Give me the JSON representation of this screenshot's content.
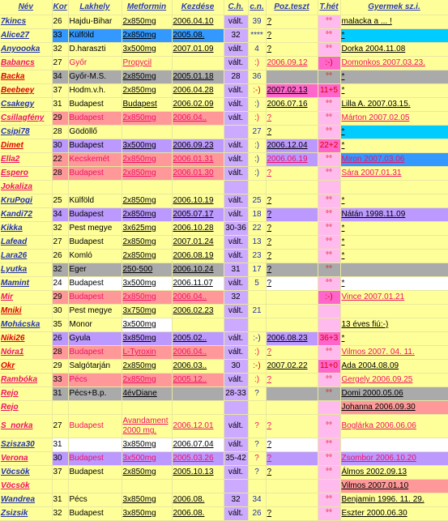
{
  "headers": [
    "Név",
    "Kor",
    "Lakhely",
    "Metformin",
    "Kezdése",
    "C.h.",
    "c.n.",
    "Poz.teszt",
    "T.hét",
    "Gyermek sz.i."
  ],
  "rows": [
    {
      "nev": "7kincs",
      "nc": "#2233aa",
      "kor": "26",
      "kbg": "#ffff99",
      "hely": "Hajdu-Bihar",
      "hc": "#000",
      "hbg": "#ffff99",
      "met": "2x850mg",
      "mbg": "#ffff99",
      "kez": "2006.04.10",
      "kbg2": "#ffff99",
      "ch": "vált.",
      "cn": "39",
      "cnc": "#2233aa",
      "poz": "?",
      "pbg": "#ffff99",
      "thet": "°°",
      "tbg": "#ffbbee",
      "gy": "malacka a ... !",
      "gbg": "#ffff99"
    },
    {
      "nev": "Alice27",
      "nc": "#2233aa",
      "kor": "33",
      "kbg": "#3399ff",
      "hely": "Külföld",
      "hc": "#000",
      "hbg": "#3399ff",
      "met": "2x850mg",
      "mbg": "#3399ff",
      "kez": "2005.08.",
      "kbg2": "#3399ff",
      "ch": "32",
      "cn": "****",
      "cnc": "#2233aa",
      "poz": "?",
      "pbg": "#ffff99",
      "thet": "°°",
      "tbg": "#ffbbee",
      "gy": "*",
      "gbg": "#00ccff"
    },
    {
      "nev": "Anyoooka",
      "nc": "#2233aa",
      "kor": "32",
      "kbg": "#ffff99",
      "hely": "D.haraszti",
      "hc": "#000",
      "hbg": "#ffff99",
      "met": "3x500mg",
      "mbg": "#ffff99",
      "kez": "2007.01.09",
      "kbg2": "#ffff99",
      "ch": "vált.",
      "cn": "4",
      "cnc": "#2233aa",
      "poz": "?",
      "pbg": "#ffff99",
      "thet": "°°",
      "tbg": "#ffbbee",
      "gy": "Dorka    2004.11.08",
      "gbg": "#ffff99"
    },
    {
      "nev": "Babancs",
      "nc": "#ee1166",
      "kor": "27",
      "kbg": "#ffff99",
      "hely": "Győr",
      "hc": "#ee1166",
      "hbg": "#ffff99",
      "met": "Propycil",
      "mbg": "#ffff99",
      "kez": "",
      "kbg2": "#ffff99",
      "ch": "vált.",
      "cn": ":)",
      "cnc": "#ee1166",
      "poz": "2006.09.12",
      "pbg": "#ffff99",
      "thet": ":-)",
      "tbg": "#ff66cc",
      "gy": "Domonkos 2007.03.23.",
      "gbg": "#ffff99"
    },
    {
      "nev": "Backa",
      "nc": "#dd0000",
      "kor": "34",
      "kbg": "#aaaaaa",
      "hely": "Győr-M.S.",
      "hc": "#000",
      "hbg": "#aaaaaa",
      "met": "2x850mg",
      "mbg": "#aaaaaa",
      "kez": "2005.01.18",
      "kbg2": "#aaaaaa",
      "ch": "28",
      "cn": "36",
      "cnc": "#2233aa",
      "poz": "",
      "pbg": "#aaaaaa",
      "thet": "°°",
      "tbg": "#aaaaaa",
      "gy": "*",
      "gbg": "#aaaaaa"
    },
    {
      "nev": "Beebeey",
      "nc": "#dd0000",
      "kor": "37",
      "kbg": "#ffff99",
      "hely": "Hodm.v.h.",
      "hc": "#000",
      "hbg": "#ffff99",
      "met": "2x850mg",
      "mbg": "#ffff99",
      "kez": "2006.04.28",
      "kbg2": "#ffff99",
      "ch": "vált.",
      "cn": ":-)",
      "cnc": "#dd0000",
      "poz": "2007.02.13",
      "pbg": "#ff66cc",
      "thet": "11+5",
      "tbg": "#ff66cc",
      "gy": "*",
      "gbg": "#ffff99"
    },
    {
      "nev": "Csakegy",
      "nc": "#2233aa",
      "kor": "31",
      "kbg": "#ffff99",
      "hely": "Budapest",
      "hc": "#000",
      "hbg": "#ffff99",
      "met": "Budapest",
      "mbg": "#ffff99",
      "kez": "2006.02.09",
      "kbg2": "#ffff99",
      "ch": "vált.",
      "cn": ":)",
      "cnc": "#2233aa",
      "poz": "2006.07.16",
      "pbg": "#ffff99",
      "thet": "°°",
      "tbg": "#ffbbee",
      "gy": "Lilla A.   2007.03.15.",
      "gbg": "#ffff99"
    },
    {
      "nev": "Csillagfény",
      "nc": "#ee1166",
      "kor": "29",
      "kbg": "#ff9999",
      "hely": "Budapest",
      "hc": "#ee1166",
      "hbg": "#ff9999",
      "met": "2x850mg",
      "mbg": "#ff9999",
      "kez": "2006.04..",
      "kbg2": "#ff9999",
      "ch": "vált.",
      "cn": ":)",
      "cnc": "#ee1166",
      "poz": "?",
      "pbg": "#ffff99",
      "thet": "°°",
      "tbg": "#ffbbee",
      "gy": "Márton    2007.02.05",
      "gbg": "#ffff99"
    },
    {
      "nev": "Csipi78",
      "nc": "#2233aa",
      "kor": "28",
      "kbg": "#ffff99",
      "hely": "Gödöllő",
      "hc": "#000",
      "hbg": "#ffff99",
      "met": "",
      "mbg": "#ffff99",
      "kez": "",
      "kbg2": "#ffff99",
      "ch": "",
      "cn": "27",
      "cnc": "#2233aa",
      "poz": "?",
      "pbg": "#ffff99",
      "thet": "°°",
      "tbg": "#ffbbee",
      "gy": "*",
      "gbg": "#00ccff"
    },
    {
      "nev": "Dimet",
      "nc": "#dd0000",
      "kor": "30",
      "kbg": "#bb99ff",
      "hely": "Budapest",
      "hc": "#000",
      "hbg": "#bb99ff",
      "met": "3x500mg",
      "mbg": "#bb99ff",
      "kez": "2006.09.23",
      "kbg2": "#bb99ff",
      "ch": "vált.",
      "cn": ":)",
      "cnc": "#2233aa",
      "poz": "2006.12.04",
      "pbg": "#bb99ff",
      "thet": "22+2",
      "tbg": "#ff66cc",
      "gy": "*",
      "gbg": "#ffff99"
    },
    {
      "nev": "Ella2",
      "nc": "#ee1166",
      "kor": "22",
      "kbg": "#ff9999",
      "hely": "Kecskemét",
      "hc": "#ee1166",
      "hbg": "#ff9999",
      "met": "2x850mg",
      "mbg": "#ff9999",
      "kez": "2006.01.31",
      "kbg2": "#ff9999",
      "ch": "vált.",
      "cn": ":)",
      "cnc": "#2233aa",
      "poz": "2006.06.19",
      "pbg": "#bb99ff",
      "thet": "°°",
      "tbg": "#ffbbee",
      "gy": "Miron      2007.03.06",
      "gbg": "#3399ff"
    },
    {
      "nev": "Espero",
      "nc": "#ee1166",
      "kor": "28",
      "kbg": "#ff9999",
      "hely": "Budapest",
      "hc": "#ee1166",
      "hbg": "#ff9999",
      "met": "2x850mg",
      "mbg": "#ff9999",
      "kez": "2006.01.30",
      "kbg2": "#ff9999",
      "ch": "vált.",
      "cn": ":)",
      "cnc": "#2233aa",
      "poz": "?",
      "pbg": "#ffff99",
      "thet": "°°",
      "tbg": "#ffbbee",
      "gy": "Sára      2007.01.31",
      "gbg": "#ffff99"
    },
    {
      "nev": "Jokaliza",
      "nc": "#ee1166",
      "kor": "",
      "kbg": "#ffff99",
      "hely": "",
      "hc": "#000",
      "hbg": "#ffff99",
      "met": "",
      "mbg": "#ffff99",
      "kez": "",
      "kbg2": "#ffff99",
      "ch": "",
      "cn": "",
      "cnc": "#2233aa",
      "poz": "",
      "pbg": "#ffff99",
      "thet": "",
      "tbg": "#ffbbee",
      "gy": "",
      "gbg": "#ffff99"
    },
    {
      "nev": "KruPogi",
      "nc": "#2233aa",
      "kor": "25",
      "kbg": "#ffff99",
      "hely": "Külföld",
      "hc": "#000",
      "hbg": "#ffff99",
      "met": "2x850mg",
      "mbg": "#ffff99",
      "kez": "2006.10.19",
      "kbg2": "#ffff99",
      "ch": "vált.",
      "cn": "25",
      "cnc": "#2233aa",
      "poz": "?",
      "pbg": "#ffff99",
      "thet": "°°",
      "tbg": "#ffbbee",
      "gy": "*",
      "gbg": "#ffff99"
    },
    {
      "nev": "Kandi72",
      "nc": "#2233aa",
      "kor": "34",
      "kbg": "#bb99ff",
      "hely": "Budapest",
      "hc": "#000",
      "hbg": "#bb99ff",
      "met": "2x850mg",
      "mbg": "#bb99ff",
      "kez": "2005.07.17",
      "kbg2": "#bb99ff",
      "ch": "vált.",
      "cn": "18",
      "cnc": "#2233aa",
      "poz": "?",
      "pbg": "#bb99ff",
      "thet": "°°",
      "tbg": "#ffbbee",
      "gy": "Nátán      1998.11.09",
      "gbg": "#bb99ff"
    },
    {
      "nev": "Kikka",
      "nc": "#2233aa",
      "kor": "32",
      "kbg": "#ffff99",
      "hely": "Pest megye",
      "hc": "#000",
      "hbg": "#ffff99",
      "met": "3x625mg",
      "mbg": "#ffff99",
      "kez": "2006.10.28",
      "kbg2": "#ffff99",
      "ch": "30-36",
      "cn": "22",
      "cnc": "#2233aa",
      "poz": "?",
      "pbg": "#ffff99",
      "thet": "°°",
      "tbg": "#ffbbee",
      "gy": "*",
      "gbg": "#ffff99"
    },
    {
      "nev": "Lafead",
      "nc": "#2233aa",
      "kor": "27",
      "kbg": "#ffff99",
      "hely": "Budapest",
      "hc": "#000",
      "hbg": "#ffff99",
      "met": "2x850mg",
      "mbg": "#ffff99",
      "kez": "2007.01.24",
      "kbg2": "#ffff99",
      "ch": "vált.",
      "cn": "13",
      "cnc": "#2233aa",
      "poz": "?",
      "pbg": "#ffff99",
      "thet": "°°",
      "tbg": "#ffbbee",
      "gy": "*",
      "gbg": "#ffff99"
    },
    {
      "nev": "Lara26",
      "nc": "#2233aa",
      "kor": "26",
      "kbg": "#ffff99",
      "hely": "Komló",
      "hc": "#000",
      "hbg": "#ffff99",
      "met": "2x850mg",
      "mbg": "#ffff99",
      "kez": "2006.08.19",
      "kbg2": "#ffff99",
      "ch": "vált.",
      "cn": "23",
      "cnc": "#2233aa",
      "poz": "?",
      "pbg": "#ffff99",
      "thet": "°°",
      "tbg": "#ffbbee",
      "gy": "*",
      "gbg": "#ffff99"
    },
    {
      "nev": "Lyutka",
      "nc": "#2233aa",
      "kor": "32",
      "kbg": "#aaaaaa",
      "hely": "Eger",
      "hc": "#000",
      "hbg": "#aaaaaa",
      "met": "250-500",
      "mbg": "#aaaaaa",
      "kez": "2006.10.24",
      "kbg2": "#aaaaaa",
      "ch": "31",
      "cn": "17",
      "cnc": "#2233aa",
      "poz": "?",
      "pbg": "#aaaaaa",
      "thet": "°°",
      "tbg": "#aaaaaa",
      "gy": "",
      "gbg": "#aaaaaa"
    },
    {
      "nev": "Mamint",
      "nc": "#2233aa",
      "kor": "24",
      "kbg": "#ffffff",
      "hely": "Budapest",
      "hc": "#000",
      "hbg": "#ffffff",
      "met": "3x500mg",
      "mbg": "#ffffff",
      "kez": "2006.11.07",
      "kbg2": "#ffffff",
      "ch": "vált.",
      "cn": "5",
      "cnc": "#2233aa",
      "poz": "?",
      "pbg": "#ffffff",
      "thet": "°°",
      "tbg": "#ffbbee",
      "gy": "*",
      "gbg": "#ffffff"
    },
    {
      "nev": "Mir",
      "nc": "#ee1166",
      "kor": "29",
      "kbg": "#ff9999",
      "hely": "Budapest",
      "hc": "#ee1166",
      "hbg": "#ff9999",
      "met": "2x850mg",
      "mbg": "#ff9999",
      "kez": "2006.04..",
      "kbg2": "#ff9999",
      "ch": "32",
      "cn": "",
      "cnc": "#2233aa",
      "poz": "",
      "pbg": "#ffff99",
      "thet": ":-)",
      "tbg": "#ff66cc",
      "gy": "Vince      2007.01.21",
      "gbg": "#ffff99"
    },
    {
      "nev": "Mniki",
      "nc": "#dd0000",
      "kor": "30",
      "kbg": "#ffff99",
      "hely": "Pest megye",
      "hc": "#000",
      "hbg": "#ffff99",
      "met": "3x750mg",
      "mbg": "#ffff99",
      "kez": "2006.02.23",
      "kbg2": "#ffff99",
      "ch": "vált.",
      "cn": "21",
      "cnc": "#2233aa",
      "poz": "",
      "pbg": "#ffff99",
      "thet": "",
      "tbg": "#ffbbee",
      "gy": "",
      "gbg": "#ffff99"
    },
    {
      "nev": "Mohácska",
      "nc": "#2233aa",
      "kor": "35",
      "kbg": "#ffff99",
      "hely": "Monor",
      "hc": "#000",
      "hbg": "#ffff99",
      "met": "3x500mg",
      "mbg": "#ffffff",
      "kez": "",
      "kbg2": "#ffff99",
      "ch": "",
      "cn": "",
      "cnc": "#2233aa",
      "poz": "",
      "pbg": "#ffff99",
      "thet": "",
      "tbg": "#ffbbee",
      "gy": "13 éves fiú:-)",
      "gbg": "#ffff99"
    },
    {
      "nev": "Niki26",
      "nc": "#dd0000",
      "kor": "26",
      "kbg": "#bb99ff",
      "hely": "Gyula",
      "hc": "#000",
      "hbg": "#bb99ff",
      "met": "3x850mg",
      "mbg": "#bb99ff",
      "kez": "2005.02..",
      "kbg2": "#bb99ff",
      "ch": "vált.",
      "cn": ":-)",
      "cnc": "#2233aa",
      "poz": "2006.08.23",
      "pbg": "#bb99ff",
      "thet": "36+3",
      "tbg": "#ff66cc",
      "gy": "*",
      "gbg": "#ffff99"
    },
    {
      "nev": "Nóra1",
      "nc": "#ee1166",
      "kor": "28",
      "kbg": "#ff9999",
      "hely": "Budapest",
      "hc": "#ee1166",
      "hbg": "#ff9999",
      "met": "L-Tyroxin",
      "mbg": "#ff9999",
      "kez": "2006.04..",
      "kbg2": "#ff9999",
      "ch": "vált.",
      "cn": ":)",
      "cnc": "#ee1166",
      "poz": "?",
      "pbg": "#ffff99",
      "thet": "°°",
      "tbg": "#ffbbee",
      "gy": "Vilmos 2007. 04. 11.",
      "gbg": "#ffff99"
    },
    {
      "nev": "Okr",
      "nc": "#dd0000",
      "kor": "29",
      "kbg": "#ffff99",
      "hely": "Salgótarján",
      "hc": "#000",
      "hbg": "#ffff99",
      "met": "2x850mg",
      "mbg": "#ffff99",
      "kez": "2006.03..",
      "kbg2": "#ffff99",
      "ch": "30",
      "cn": ":-)",
      "cnc": "#dd0000",
      "poz": "2007.02.22",
      "pbg": "#ffff99",
      "thet": "11+0",
      "tbg": "#ff66cc",
      "gy": "Ada        2004.08.09",
      "gbg": "#ffff99"
    },
    {
      "nev": "Rambóka",
      "nc": "#ee1166",
      "kor": "33",
      "kbg": "#ff9999",
      "hely": "Pécs",
      "hc": "#ee1166",
      "hbg": "#ff9999",
      "met": "2x850mg",
      "mbg": "#ff9999",
      "kez": "2005.12..",
      "kbg2": "#ff9999",
      "ch": "vált.",
      "cn": ":)",
      "cnc": "#ee1166",
      "poz": "?",
      "pbg": "#ffff99",
      "thet": "°°",
      "tbg": "#ffbbee",
      "gy": "Gergely  2006.09.25",
      "gbg": "#ffff99"
    },
    {
      "nev": "Rejo",
      "nc": "#ee1166",
      "kor": "31",
      "kbg": "#aaaaaa",
      "hely": "Pécs+B.p.",
      "hc": "#000",
      "hbg": "#aaaaaa",
      "met": "4évDiane",
      "mbg": "#aaaaaa",
      "kez": "",
      "kbg2": "#aaaaaa",
      "ch": "28-33",
      "cn": "?",
      "cnc": "#2233aa",
      "poz": "",
      "pbg": "#aaaaaa",
      "thet": "°°",
      "tbg": "#aaaaaa",
      "gy": "Domi       2000.05.06",
      "gbg": "#aaaaaa"
    },
    {
      "nev": "Rejo",
      "nc": "#ee1166",
      "kor": "",
      "kbg": "#ffff99",
      "hely": "",
      "hc": "#000",
      "hbg": "#ffff99",
      "met": "",
      "mbg": "#ffff99",
      "kez": "",
      "kbg2": "#ffff99",
      "ch": "",
      "cn": "",
      "cnc": "#2233aa",
      "poz": "",
      "pbg": "#ffff99",
      "thet": "",
      "tbg": "#ffbbee",
      "gy": "Johanna  2006.09.30",
      "gbg": "#ff9999"
    },
    {
      "nev": "S_norka",
      "nc": "#ee1166",
      "kor": "27",
      "kbg": "#ffff99",
      "hely": "Budapest",
      "hc": "#ee1166",
      "hbg": "#ffff99",
      "met": "Avandament\n2000 mg.",
      "mbg": "#ffff99",
      "kez": "2006.12.01",
      "kbg2": "#ffff99",
      "ch": "vált.",
      "cn": "?",
      "cnc": "#ee1166",
      "poz": "?",
      "pbg": "#ffff99",
      "thet": "°°",
      "tbg": "#ffbbee",
      "gy": "Boglárka 2006.06.06",
      "gbg": "#ffff99",
      "tall": true
    },
    {
      "nev": "Szisza30",
      "nc": "#2233aa",
      "kor": "31",
      "kbg": "#ffffff",
      "hely": "",
      "hc": "#000",
      "hbg": "#ffffff",
      "met": "3x850mg",
      "mbg": "#ffffff",
      "kez": "2006.07.04",
      "kbg2": "#ffffff",
      "ch": "vált.",
      "cn": "?",
      "cnc": "#2233aa",
      "poz": "?",
      "pbg": "#ffffff",
      "thet": "°°",
      "tbg": "#ffbbee",
      "gy": "",
      "gbg": "#ffffff"
    },
    {
      "nev": "Verona",
      "nc": "#ee1166",
      "kor": "30",
      "kbg": "#bb99ff",
      "hely": "Budapest",
      "hc": "#ee1166",
      "hbg": "#bb99ff",
      "met": "3x500mg",
      "mbg": "#bb99ff",
      "kez": "2005.03.26",
      "kbg2": "#bb99ff",
      "ch": "35-42",
      "cn": "?",
      "cnc": "#ee1166",
      "poz": "?",
      "pbg": "#bb99ff",
      "thet": "°°",
      "tbg": "#ffbbee",
      "gy": "Zsombor  2006.10.20",
      "gbg": "#bb99ff"
    },
    {
      "nev": "Vöcsök",
      "nc": "#2233aa",
      "kor": "37",
      "kbg": "#ffff99",
      "hely": "Budapest",
      "hc": "#000",
      "hbg": "#ffff99",
      "met": "2x850mg",
      "mbg": "#ffff99",
      "kez": "2005.10.13",
      "kbg2": "#ffff99",
      "ch": "vált.",
      "cn": "?",
      "cnc": "#2233aa",
      "poz": "?",
      "pbg": "#ffff99",
      "thet": "°°",
      "tbg": "#ffbbee",
      "gy": "Álmos     2002.09.13",
      "gbg": "#ffff99"
    },
    {
      "nev": "Vöcsök",
      "nc": "#ee1166",
      "kor": "",
      "kbg": "#ffff99",
      "hely": "",
      "hc": "#000",
      "hbg": "#ffff99",
      "met": "",
      "mbg": "#ffff99",
      "kez": "",
      "kbg2": "#ffff99",
      "ch": "",
      "cn": "",
      "cnc": "#2233aa",
      "poz": "",
      "pbg": "#ffff99",
      "thet": "",
      "tbg": "#ffbbee",
      "gy": "Vilmos     2007.01.10",
      "gbg": "#ff9999"
    },
    {
      "nev": "Wandrea",
      "nc": "#2233aa",
      "kor": "31",
      "kbg": "#ffff99",
      "hely": "Pécs",
      "hc": "#000",
      "hbg": "#ffff99",
      "met": "3x850mg",
      "mbg": "#ffff99",
      "kez": "2006.08.",
      "kbg2": "#ffff99",
      "ch": "32",
      "cn": "34",
      "cnc": "#2233aa",
      "poz": "",
      "pbg": "#ffff99",
      "thet": "°°",
      "tbg": "#ffbbee",
      "gy": "Benjamin 1996. 11. 29.",
      "gbg": "#ffff99"
    },
    {
      "nev": "Zsizsik",
      "nc": "#2233aa",
      "kor": "32",
      "kbg": "#ffff99",
      "hely": "Budapest",
      "hc": "#000",
      "hbg": "#ffff99",
      "met": "3x850mg",
      "mbg": "#ffff99",
      "kez": "2006.08.",
      "kbg2": "#ffff99",
      "ch": "vált.",
      "cn": "26",
      "cnc": "#2233aa",
      "poz": "?",
      "pbg": "#ffff99",
      "thet": "°°",
      "tbg": "#ffbbee",
      "gy": "Eszter     2000.06.30",
      "gbg": "#ffff99"
    }
  ]
}
